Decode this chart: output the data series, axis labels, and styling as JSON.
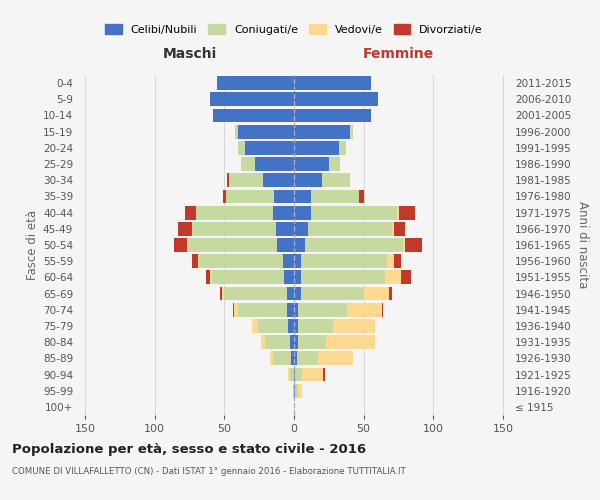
{
  "age_groups": [
    "100+",
    "95-99",
    "90-94",
    "85-89",
    "80-84",
    "75-79",
    "70-74",
    "65-69",
    "60-64",
    "55-59",
    "50-54",
    "45-49",
    "40-44",
    "35-39",
    "30-34",
    "25-29",
    "20-24",
    "15-19",
    "10-14",
    "5-9",
    "0-4"
  ],
  "birth_years": [
    "≤ 1915",
    "1916-1920",
    "1921-1925",
    "1926-1930",
    "1931-1935",
    "1936-1940",
    "1941-1945",
    "1946-1950",
    "1951-1955",
    "1956-1960",
    "1961-1965",
    "1966-1970",
    "1971-1975",
    "1976-1980",
    "1981-1985",
    "1986-1990",
    "1991-1995",
    "1996-2000",
    "2001-2005",
    "2006-2010",
    "2011-2015"
  ],
  "male": {
    "celibi": [
      0,
      0,
      0,
      2,
      3,
      4,
      5,
      5,
      7,
      8,
      12,
      13,
      15,
      14,
      22,
      28,
      35,
      40,
      58,
      60,
      55
    ],
    "coniugati": [
      0,
      1,
      3,
      13,
      18,
      22,
      35,
      45,
      52,
      60,
      65,
      60,
      55,
      35,
      25,
      10,
      5,
      2,
      0,
      0,
      0
    ],
    "vedovi": [
      0,
      0,
      1,
      2,
      3,
      4,
      3,
      2,
      1,
      1,
      0,
      0,
      0,
      0,
      0,
      0,
      0,
      0,
      0,
      0,
      0
    ],
    "divorziati": [
      0,
      0,
      0,
      0,
      0,
      0,
      1,
      1,
      3,
      4,
      9,
      10,
      8,
      2,
      1,
      0,
      0,
      0,
      0,
      0,
      0
    ]
  },
  "female": {
    "nubili": [
      0,
      1,
      1,
      2,
      3,
      3,
      3,
      5,
      5,
      5,
      8,
      10,
      12,
      12,
      20,
      25,
      32,
      40,
      55,
      60,
      55
    ],
    "coniugate": [
      0,
      2,
      5,
      15,
      20,
      25,
      35,
      45,
      60,
      62,
      70,
      60,
      62,
      35,
      20,
      8,
      5,
      2,
      0,
      0,
      0
    ],
    "vedove": [
      0,
      3,
      15,
      25,
      35,
      30,
      25,
      18,
      12,
      5,
      2,
      2,
      1,
      0,
      0,
      0,
      0,
      0,
      0,
      0,
      0
    ],
    "divorziate": [
      0,
      0,
      1,
      0,
      0,
      0,
      1,
      2,
      7,
      5,
      12,
      8,
      12,
      3,
      0,
      0,
      0,
      0,
      0,
      0,
      0
    ]
  },
  "colors": {
    "celibi": "#4472c4",
    "coniugati": "#c5d9a0",
    "vedovi": "#ffd98f",
    "divorziati": "#c0392b"
  },
  "title": "Popolazione per età, sesso e stato civile - 2016",
  "subtitle": "COMUNE DI VILLAFALLETTO (CN) - Dati ISTAT 1° gennaio 2016 - Elaborazione TUTTITALIA.IT",
  "xlabel_left": "Maschi",
  "xlabel_right": "Femmine",
  "ylabel_left": "Fasce di età",
  "ylabel_right": "Anni di nascita",
  "legend_labels": [
    "Celibi/Nubili",
    "Coniugati/e",
    "Vedovi/e",
    "Divorziati/e"
  ],
  "xlim": 155,
  "background_color": "#f5f5f5"
}
